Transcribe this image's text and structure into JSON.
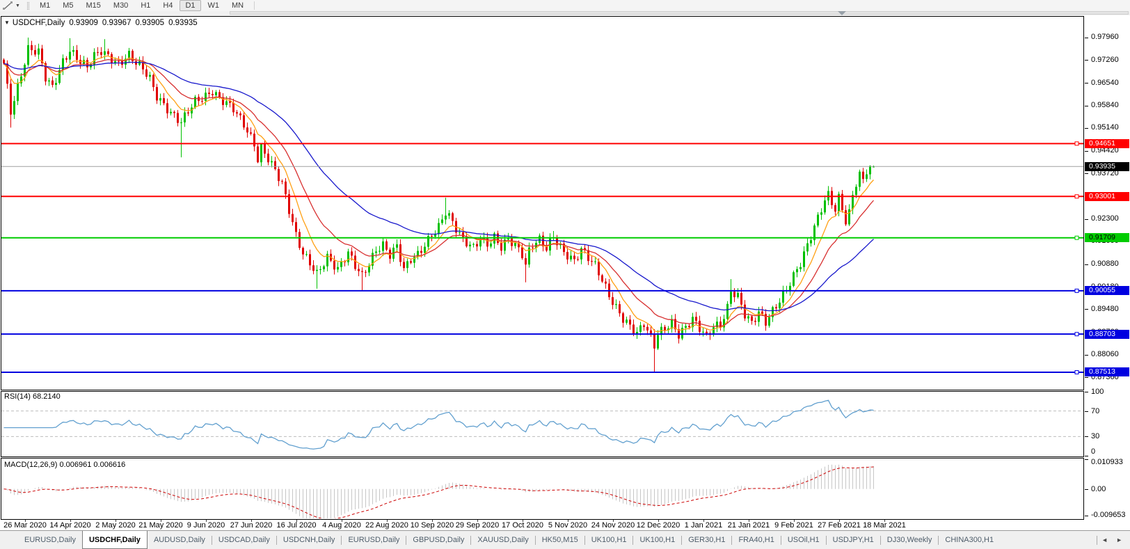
{
  "toolbar": {
    "line_studies_icon": "trendline-tool",
    "dropdown_caret": "▼",
    "timeframes": [
      "M1",
      "M5",
      "M15",
      "M30",
      "H1",
      "H4",
      "D1",
      "W1",
      "MN"
    ],
    "active_timeframe": "D1"
  },
  "chart_header": {
    "collapse_icon": "▼",
    "symbol_title": "USDCHF,Daily",
    "open": "0.93909",
    "high": "0.93967",
    "low": "0.93905",
    "close": "0.93935"
  },
  "price_axis": {
    "ticks": [
      "0.97960",
      "0.97260",
      "0.96540",
      "0.95840",
      "0.95140",
      "0.94420",
      "0.93720",
      "0.93020",
      "0.92300",
      "0.91600",
      "0.90880",
      "0.90180",
      "0.89480",
      "0.88760",
      "0.88060",
      "0.87360"
    ],
    "current_price_tag": {
      "text": "0.93935",
      "bg": "#000000",
      "fg": "#ffffff"
    }
  },
  "hlines": [
    {
      "price": "0.94651",
      "color": "#FF0000",
      "text_color": "#FFFFFF"
    },
    {
      "price": "0.93001",
      "color": "#FF0000",
      "text_color": "#FFFFFF"
    },
    {
      "price": "0.91709",
      "color": "#00CC00",
      "text_color": "#000000"
    },
    {
      "price": "0.90055",
      "color": "#0000E0",
      "text_color": "#FFFFFF"
    },
    {
      "price": "0.88703",
      "color": "#0000E0",
      "text_color": "#FFFFFF"
    },
    {
      "price": "0.87513",
      "color": "#0000E0",
      "text_color": "#FFFFFF"
    }
  ],
  "rsi_pane": {
    "label": "RSI(14) 68.2140",
    "axis_labels": [
      "100",
      "70",
      "30",
      "0"
    ],
    "level_lines": [
      70,
      30
    ],
    "line_color": "#62A0CF"
  },
  "macd_pane": {
    "label": "MACD(12,26,9) 0.006961 0.006616",
    "axis_labels": [
      "0.010933",
      "0.00",
      "-0.009653"
    ],
    "histogram_color": "#C6C6C6",
    "signal_color": "#CC0000"
  },
  "date_axis": [
    "26 Mar 2020",
    "14 Apr 2020",
    "2 May 2020",
    "21 May 2020",
    "9 Jun 2020",
    "27 Jun 2020",
    "16 Jul 2020",
    "4 Aug 2020",
    "22 Aug 2020",
    "10 Sep 2020",
    "29 Sep 2020",
    "17 Oct 2020",
    "5 Nov 2020",
    "24 Nov 2020",
    "12 Dec 2020",
    "1 Jan 2021",
    "21 Jan 2021",
    "9 Feb 2021",
    "27 Feb 2021",
    "18 Mar 2021"
  ],
  "tabs": {
    "items": [
      {
        "label": "EURUSD,Daily",
        "active": false
      },
      {
        "label": "USDCHF,Daily",
        "active": true
      },
      {
        "label": "AUDUSD,Daily",
        "active": false
      },
      {
        "label": "USDCAD,Daily",
        "active": false
      },
      {
        "label": "USDCNH,Daily",
        "active": false
      },
      {
        "label": "EURUSD,Daily",
        "active": false
      },
      {
        "label": "GBPUSD,Daily",
        "active": false
      },
      {
        "label": "XAUUSD,Daily",
        "active": false
      },
      {
        "label": "HK50,M15",
        "active": false
      },
      {
        "label": "UK100,H1",
        "active": false
      },
      {
        "label": "UK100,H1",
        "active": false
      },
      {
        "label": "GER30,H1",
        "active": false
      },
      {
        "label": "FRA40,H1",
        "active": false
      },
      {
        "label": "USOil,H1",
        "active": false
      },
      {
        "label": "USDJPY,H1",
        "active": false
      },
      {
        "label": "DJ30,Weekly",
        "active": false
      },
      {
        "label": "CHINA300,H1",
        "active": false
      }
    ],
    "scroll_left_icon": "◄",
    "scroll_right_icon": "►"
  },
  "chart_data": {
    "type": "candlestick",
    "symbol": "USDCHF",
    "timeframe": "Daily",
    "current_bar": {
      "open": 0.93909,
      "high": 0.93967,
      "low": 0.93905,
      "close": 0.93935
    },
    "y_axis": {
      "top": 0.98611,
      "bottom": 0.86991
    },
    "up_color": "#00C000",
    "down_color": "#E00000",
    "current_price_line": {
      "price": 0.93935,
      "color": "#A0A0A0"
    },
    "candles": {
      "count": 251,
      "osc_amplitude": 0.0013,
      "wick_base": 0.0016,
      "anchors": [
        [
          0,
          0.9715
        ],
        [
          2,
          0.9565
        ],
        [
          4,
          0.964
        ],
        [
          7,
          0.976
        ],
        [
          10,
          0.9752
        ],
        [
          12,
          0.9672
        ],
        [
          14,
          0.964
        ],
        [
          17,
          0.972
        ],
        [
          19,
          0.9755
        ],
        [
          22,
          0.9722
        ],
        [
          24,
          0.9705
        ],
        [
          26,
          0.974
        ],
        [
          28,
          0.9755
        ],
        [
          31,
          0.9728
        ],
        [
          33,
          0.9712
        ],
        [
          36,
          0.9742
        ],
        [
          38,
          0.9718
        ],
        [
          40,
          0.97
        ],
        [
          42,
          0.9668
        ],
        [
          44,
          0.9612
        ],
        [
          46,
          0.9585
        ],
        [
          48,
          0.956
        ],
        [
          51,
          0.9532
        ],
        [
          53,
          0.9568
        ],
        [
          55,
          0.9598
        ],
        [
          58,
          0.9612
        ],
        [
          60,
          0.9628
        ],
        [
          62,
          0.9605
        ],
        [
          64,
          0.9592
        ],
        [
          66,
          0.9575
        ],
        [
          69,
          0.9525
        ],
        [
          72,
          0.9462
        ],
        [
          73,
          0.9415
        ],
        [
          74,
          0.9452
        ],
        [
          76,
          0.9418
        ],
        [
          78,
          0.9382
        ],
        [
          80,
          0.934
        ],
        [
          82,
          0.9258
        ],
        [
          84,
          0.9178
        ],
        [
          86,
          0.9122
        ],
        [
          88,
          0.9092
        ],
        [
          90,
          0.9058
        ],
        [
          93,
          0.911
        ],
        [
          96,
          0.9072
        ],
        [
          99,
          0.9125
        ],
        [
          101,
          0.9085
        ],
        [
          103,
          0.9052
        ],
        [
          105,
          0.909
        ],
        [
          107,
          0.9132
        ],
        [
          109,
          0.9148
        ],
        [
          111,
          0.9118
        ],
        [
          113,
          0.9145
        ],
        [
          115,
          0.9072
        ],
        [
          117,
          0.9105
        ],
        [
          119,
          0.9118
        ],
        [
          121,
          0.9148
        ],
        [
          123,
          0.918
        ],
        [
          125,
          0.9205
        ],
        [
          127,
          0.9252
        ],
        [
          128,
          0.9238
        ],
        [
          130,
          0.92
        ],
        [
          132,
          0.9165
        ],
        [
          135,
          0.914
        ],
        [
          137,
          0.9168
        ],
        [
          139,
          0.915
        ],
        [
          141,
          0.9172
        ],
        [
          143,
          0.9142
        ],
        [
          145,
          0.9168
        ],
        [
          147,
          0.9148
        ],
        [
          149,
          0.912
        ],
        [
          150,
          0.9085
        ],
        [
          151,
          0.913
        ],
        [
          152,
          0.915
        ],
        [
          154,
          0.9165
        ],
        [
          156,
          0.9138
        ],
        [
          158,
          0.9175
        ],
        [
          161,
          0.9125
        ],
        [
          164,
          0.9098
        ],
        [
          166,
          0.9135
        ],
        [
          168,
          0.911
        ],
        [
          170,
          0.9085
        ],
        [
          172,
          0.904
        ],
        [
          174,
          0.899
        ],
        [
          176,
          0.8952
        ],
        [
          178,
          0.8918
        ],
        [
          180,
          0.8895
        ],
        [
          182,
          0.8872
        ],
        [
          184,
          0.8905
        ],
        [
          186,
          0.8858
        ],
        [
          187,
          0.8835
        ],
        [
          188,
          0.8872
        ],
        [
          190,
          0.8888
        ],
        [
          192,
          0.8905
        ],
        [
          194,
          0.8868
        ],
        [
          196,
          0.8892
        ],
        [
          198,
          0.8918
        ],
        [
          200,
          0.889
        ],
        [
          202,
          0.8862
        ],
        [
          204,
          0.8895
        ],
        [
          206,
          0.8898
        ],
        [
          208,
          0.8952
        ],
        [
          209,
          0.9005
        ],
        [
          211,
          0.8988
        ],
        [
          213,
          0.8932
        ],
        [
          215,
          0.8905
        ],
        [
          217,
          0.8938
        ],
        [
          219,
          0.8908
        ],
        [
          221,
          0.8942
        ],
        [
          223,
          0.8975
        ],
        [
          225,
          0.901
        ],
        [
          227,
          0.9052
        ],
        [
          229,
          0.9092
        ],
        [
          231,
          0.9148
        ],
        [
          233,
          0.9205
        ],
        [
          235,
          0.9262
        ],
        [
          236,
          0.9288
        ],
        [
          237,
          0.9305
        ],
        [
          238,
          0.9282
        ],
        [
          239,
          0.9258
        ],
        [
          240,
          0.9295
        ],
        [
          241,
          0.9262
        ],
        [
          242,
          0.9222
        ],
        [
          243,
          0.9248
        ],
        [
          244,
          0.9305
        ],
        [
          245,
          0.9342
        ],
        [
          246,
          0.9368
        ],
        [
          247,
          0.935
        ],
        [
          248,
          0.9382
        ],
        [
          249,
          0.939
        ],
        [
          250,
          0.93935
        ]
      ],
      "spikes": [
        [
          2,
          "l",
          0.9515
        ],
        [
          7,
          "h",
          0.9796
        ],
        [
          19,
          "h",
          0.9794
        ],
        [
          29,
          "h",
          0.9791
        ],
        [
          51,
          "l",
          0.9422
        ],
        [
          73,
          "l",
          0.9404
        ],
        [
          74,
          "h",
          0.9464
        ],
        [
          90,
          "l",
          0.9012
        ],
        [
          103,
          "l",
          0.9006
        ],
        [
          127,
          "h",
          0.9296
        ],
        [
          150,
          "l",
          0.9032
        ],
        [
          158,
          "h",
          0.9192
        ],
        [
          187,
          "l",
          0.8753
        ],
        [
          209,
          "h",
          0.9042
        ],
        [
          242,
          "l",
          0.9208
        ],
        [
          249,
          "h",
          0.9397
        ]
      ]
    },
    "moving_averages": [
      {
        "name": "fast",
        "period": 8,
        "color": "#FFA014"
      },
      {
        "name": "mid",
        "period": 18,
        "color": "#D83030"
      },
      {
        "name": "slow",
        "period": 45,
        "color": "#1818CC"
      }
    ],
    "horizontal_lines": [
      0.94651,
      0.93001,
      0.91709,
      0.90055,
      0.88703,
      0.87513
    ],
    "rsi": {
      "period": 14,
      "current": 68.214,
      "levels": [
        70,
        30
      ],
      "range": [
        0,
        100
      ]
    },
    "macd": {
      "fast": 12,
      "slow": 26,
      "signal": 9,
      "current_macd": 0.006961,
      "current_signal": 0.006616,
      "range": [
        -0.0108,
        0.0112
      ]
    },
    "x_axis_dates": [
      "26 Mar 2020",
      "14 Apr 2020",
      "2 May 2020",
      "21 May 2020",
      "9 Jun 2020",
      "27 Jun 2020",
      "16 Jul 2020",
      "4 Aug 2020",
      "22 Aug 2020",
      "10 Sep 2020",
      "29 Sep 2020",
      "17 Oct 2020",
      "5 Nov 2020",
      "24 Nov 2020",
      "12 Dec 2020",
      "1 Jan 2021",
      "21 Jan 2021",
      "9 Feb 2021",
      "27 Feb 2021",
      "18 Mar 2021"
    ]
  }
}
